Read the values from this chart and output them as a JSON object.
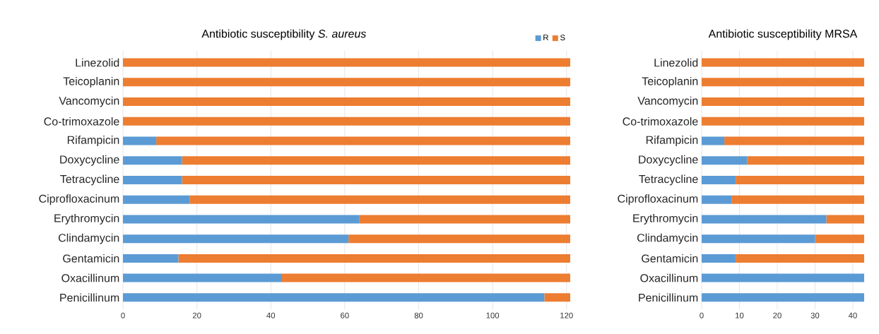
{
  "chart_data": [
    {
      "type": "bar",
      "orientation": "horizontal",
      "stacked": true,
      "title": "Antibiotic susceptibility *S. aureus*",
      "categories": [
        "Linezolid",
        "Teicoplanin",
        "Vancomycin",
        "Co-trimoxazole",
        "Rifampicin",
        "Doxycycline",
        "Tetracycline",
        "Ciprofloxacinum",
        "Erythromycin",
        "Clindamycin",
        "Gentamicin",
        "Oxacillinum",
        "Penicillinum"
      ],
      "series": [
        {
          "name": "R",
          "color": "#5b9bd5",
          "values": [
            0,
            0,
            0,
            0,
            9,
            16,
            16,
            18,
            64,
            61,
            15,
            43,
            114
          ]
        },
        {
          "name": "S",
          "color": "#ed7d31",
          "values": [
            121,
            121,
            121,
            121,
            112,
            105,
            105,
            103,
            57,
            60,
            106,
            78,
            7
          ]
        }
      ],
      "xlim": [
        0,
        121
      ],
      "xticks": [
        0,
        20,
        40,
        60,
        80,
        100,
        120
      ],
      "grid": "x",
      "legend": "top right"
    },
    {
      "type": "bar",
      "orientation": "horizontal",
      "stacked": true,
      "title": "Antibiotic susceptibility MRSA",
      "categories": [
        "Linezolid",
        "Teicoplanin",
        "Vancomycin",
        "Co-trimoxazole",
        "Rifampicin",
        "Doxycycline",
        "Tetracycline",
        "Ciprofloxacinum",
        "Erythromycin",
        "Clindamycin",
        "Gentamicin",
        "Oxacillinum",
        "Penicillinum"
      ],
      "series": [
        {
          "color": "#5b9bd5",
          "values": [
            0,
            0,
            0,
            0,
            6,
            12,
            9,
            8,
            33,
            30,
            9,
            43,
            43
          ]
        },
        {
          "color": "#ed7d31",
          "values": [
            43,
            43,
            43,
            43,
            37,
            31,
            34,
            35,
            10,
            13,
            34,
            0,
            0
          ]
        }
      ],
      "xlim": [
        0,
        43
      ],
      "xticks": [
        0,
        10,
        20,
        30,
        40
      ],
      "grid": "x"
    }
  ]
}
